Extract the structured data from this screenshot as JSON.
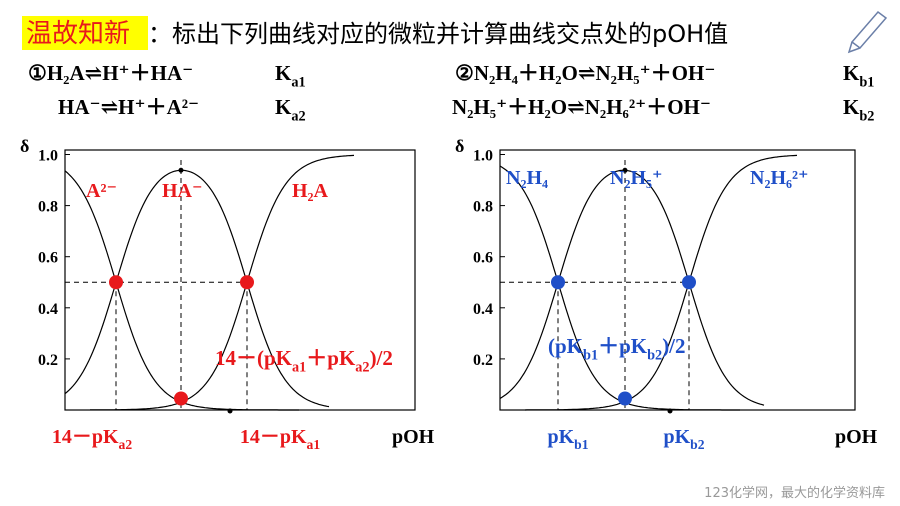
{
  "header": {
    "highlight": "温故知新",
    "title": "：标出下列曲线对应的微粒并计算曲线交点处的pOH值"
  },
  "left": {
    "equations": [
      {
        "text": "①H₂A⇌H⁺＋HA⁻",
        "constant": [
          "K",
          "a1"
        ]
      },
      {
        "text": "HA⁻⇌H⁺＋A²⁻",
        "constant": [
          "K",
          "a2"
        ]
      }
    ],
    "y_axis_label": "δ",
    "y_tick_labels": [
      "1.0",
      "0.8",
      "0.6",
      "0.4",
      "0.2"
    ],
    "species": [
      "A²⁻",
      "HA⁻",
      "H₂A"
    ],
    "midpoint_label": [
      "14－(pK",
      "a1",
      "＋pK",
      "a2",
      ")/2"
    ],
    "x_labels": [
      [
        "14－pK",
        "a2"
      ],
      [
        "14－pK",
        "a1"
      ]
    ],
    "x_axis_label": "pOH"
  },
  "right": {
    "equations": [
      {
        "text": "②N₂H₄＋H₂O⇌N₂H₅⁺＋OH⁻",
        "constant": [
          "K",
          "b1"
        ]
      },
      {
        "text": "N₂H₅⁺＋H₂O⇌N₂H₆²⁺＋OH⁻",
        "constant": [
          "K",
          "b2"
        ]
      }
    ],
    "y_axis_label": "δ",
    "y_tick_labels": [
      "1.0",
      "0.8",
      "0.6",
      "0.4",
      "0.2"
    ],
    "species": [
      "N₂H₄",
      "N₂H₅⁺",
      "N₂H₆²⁺"
    ],
    "midpoint_label": [
      "(pK",
      "b1",
      "＋pK",
      "b2",
      ")/2"
    ],
    "x_labels": [
      [
        "pK",
        "b1"
      ],
      [
        "pK",
        "b2"
      ]
    ],
    "x_axis_label": "pOH"
  },
  "watermark": "123化学网，最大的化学资料库"
}
